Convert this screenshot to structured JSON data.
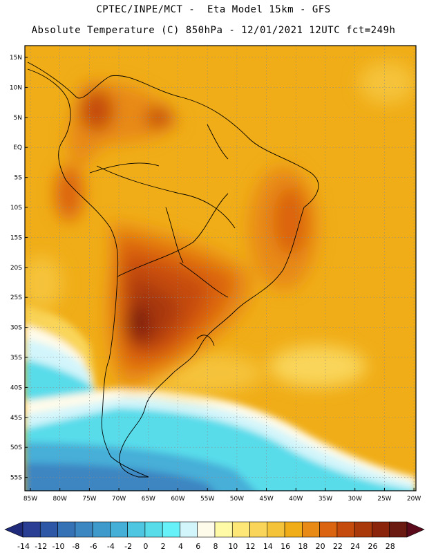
{
  "header": {
    "line1": "CPTEC/INPE/MCT -  Eta Model 15km - GFS",
    "line2": "Absolute Temperature (C) 850hPa - 12/01/2021 12UTC fct=249h"
  },
  "axes": {
    "lat_labels": [
      "15N",
      "10N",
      "5N",
      "EQ",
      "5S",
      "10S",
      "15S",
      "20S",
      "25S",
      "30S",
      "35S",
      "40S",
      "45S",
      "50S",
      "55S"
    ],
    "lon_labels": [
      "85W",
      "80W",
      "75W",
      "70W",
      "65W",
      "60W",
      "55W",
      "50W",
      "45W",
      "40W",
      "35W",
      "30W",
      "25W",
      "20W"
    ]
  },
  "colorbar": {
    "labels": [
      "-14",
      "-12",
      "-10",
      "-8",
      "-6",
      "-4",
      "-2",
      "0",
      "2",
      "4",
      "6",
      "8",
      "10",
      "12",
      "14",
      "16",
      "18",
      "20",
      "22",
      "24",
      "26",
      "28"
    ],
    "colors": [
      "#2a3f94",
      "#2e57a5",
      "#3571b5",
      "#3c86c2",
      "#3f9acc",
      "#46afd8",
      "#4fc6e1",
      "#58dcea",
      "#65f1f7",
      "#d2f5fb",
      "#fffbea",
      "#fffaa6",
      "#fde877",
      "#f9d55a",
      "#f5c33a",
      "#f0ad17",
      "#e88a16",
      "#db6411",
      "#c54b0c",
      "#a9380b",
      "#8a240a",
      "#6b1a12"
    ],
    "low_color": "#1f2b7a",
    "high_color": "#5a0a1a"
  }
}
